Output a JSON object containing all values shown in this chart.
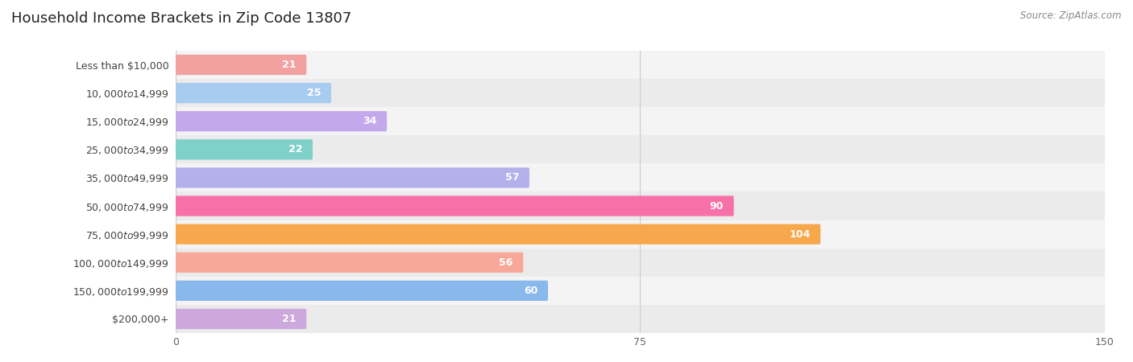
{
  "title": "Household Income Brackets in Zip Code 13807",
  "source": "Source: ZipAtlas.com",
  "categories": [
    "Less than $10,000",
    "$10,000 to $14,999",
    "$15,000 to $24,999",
    "$25,000 to $34,999",
    "$35,000 to $49,999",
    "$50,000 to $74,999",
    "$75,000 to $99,999",
    "$100,000 to $149,999",
    "$150,000 to $199,999",
    "$200,000+"
  ],
  "values": [
    21,
    25,
    34,
    22,
    57,
    90,
    104,
    56,
    60,
    21
  ],
  "bar_colors": [
    "#F2A0A0",
    "#A8CCF0",
    "#C4A8EC",
    "#7ED0C8",
    "#B4B0EC",
    "#F870A8",
    "#F8A84C",
    "#F8A898",
    "#88B8EC",
    "#CCA8DC"
  ],
  "xlim": [
    0,
    150
  ],
  "xticks": [
    0,
    75,
    150
  ],
  "background_color": "#ffffff",
  "row_even_color": "#f4f4f4",
  "row_odd_color": "#ebebeb",
  "value_color_inside": "#ffffff",
  "value_color_outside": "#666666",
  "inside_threshold": 10,
  "title_fontsize": 13,
  "label_fontsize": 9,
  "value_fontsize": 9,
  "source_fontsize": 8.5
}
